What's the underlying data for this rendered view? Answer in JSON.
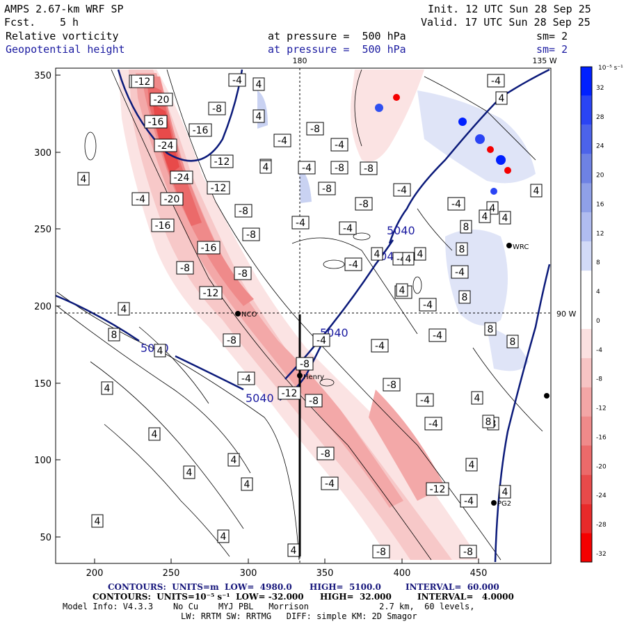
{
  "header": {
    "model": "AMPS 2.67-km WRF SP",
    "fcst_label": "Fcst.",
    "fcst_value": "5 h",
    "init": "Init. 12 UTC Sun 28 Sep 25",
    "valid": "Valid. 17 UTC Sun 28 Sep 25",
    "field1": "Relative vorticity",
    "field2": "Geopotential height",
    "pressure1": "at pressure =  500 hPa",
    "pressure2": "at pressure =  500 hPa",
    "sm1": "sm= 2",
    "sm2": "sm= 2",
    "lon180": "180",
    "lon135": "135 W",
    "lat90": "90 W"
  },
  "colorbar": {
    "unit": "10⁻⁵ s⁻¹",
    "ticks": [
      "32",
      "28",
      "24",
      "20",
      "16",
      "12",
      "8",
      "4",
      "0",
      "-4",
      "-8",
      "-12",
      "-16",
      "-20",
      "-24",
      "-28",
      "-32"
    ],
    "colors": [
      "#0020ff",
      "#2a44f4",
      "#4c63ea",
      "#6e82e4",
      "#8fa0e8",
      "#b0bcf0",
      "#d2daf7",
      "#ffffff",
      "#ffffff",
      "#fbe0e0",
      "#f7c4c4",
      "#f3a6a6",
      "#ef8a8a",
      "#eb6a6a",
      "#e84a4a",
      "#e82a2a",
      "#f40000"
    ]
  },
  "axes": {
    "x_ticks": [
      "200",
      "250",
      "300",
      "350",
      "400",
      "450"
    ],
    "y_ticks": [
      "350",
      "300",
      "250",
      "200",
      "150",
      "100",
      "50"
    ]
  },
  "stations": [
    {
      "name": "WRC"
    },
    {
      "name": "NCO"
    },
    {
      "name": "Henry"
    },
    {
      "name": "PG2"
    }
  ],
  "height_labels": [
    "5040",
    "5040",
    "5040",
    "5040",
    "5040"
  ],
  "vort_labels": [
    "-12",
    "-20",
    "-16",
    "-16",
    "-24",
    "-8",
    "-24",
    "-20",
    "-4",
    "-16",
    "-12",
    "-12",
    "-12",
    "-8",
    "-16",
    "-8",
    "-8",
    "-8",
    "-12",
    "-4",
    "-4",
    "-8",
    "-4",
    "-8",
    "-4",
    "-4",
    "-4",
    "-8",
    "-4",
    "-8",
    "-8",
    "-4",
    "-4",
    "-8",
    "-12",
    "-8",
    "-4",
    "-8",
    "-4",
    "-8",
    "-4",
    "-4",
    "-4",
    "-4",
    "-8",
    "-12",
    "-4",
    "-4",
    "-8",
    "-4",
    "-4",
    "-4",
    "-4",
    "-8",
    "-4",
    "4",
    "4",
    "4",
    "8",
    "4",
    "4",
    "4",
    "4",
    "4",
    "4",
    "4",
    "4",
    "4",
    "4",
    "4",
    "4",
    "4",
    "8",
    "8",
    "8",
    "8",
    "4",
    "4",
    "4",
    "4",
    "4",
    "8",
    "8",
    "8",
    "4",
    "4",
    "8",
    "4",
    "4",
    "4"
  ],
  "footer": {
    "line1a": "CONTOURS:  UNITS=m  LOW=  4980.0",
    "line1b": "HIGH=  5100.0",
    "line1c": "INTERVAL=  60.000",
    "line2a": "CONTOURS:  UNITS=10⁻⁵ s⁻¹  LOW= -32.000",
    "line2b": "HIGH=  32.000",
    "line2c": "INTERVAL=   4.0000",
    "line3": "Model Info: V4.3.3    No Cu    MYJ PBL   Morrison              2.7 km,  60 levels,",
    "line4": "LW: RRTM SW: RRTMG   DIFF: simple KM: 2D Smagor"
  }
}
